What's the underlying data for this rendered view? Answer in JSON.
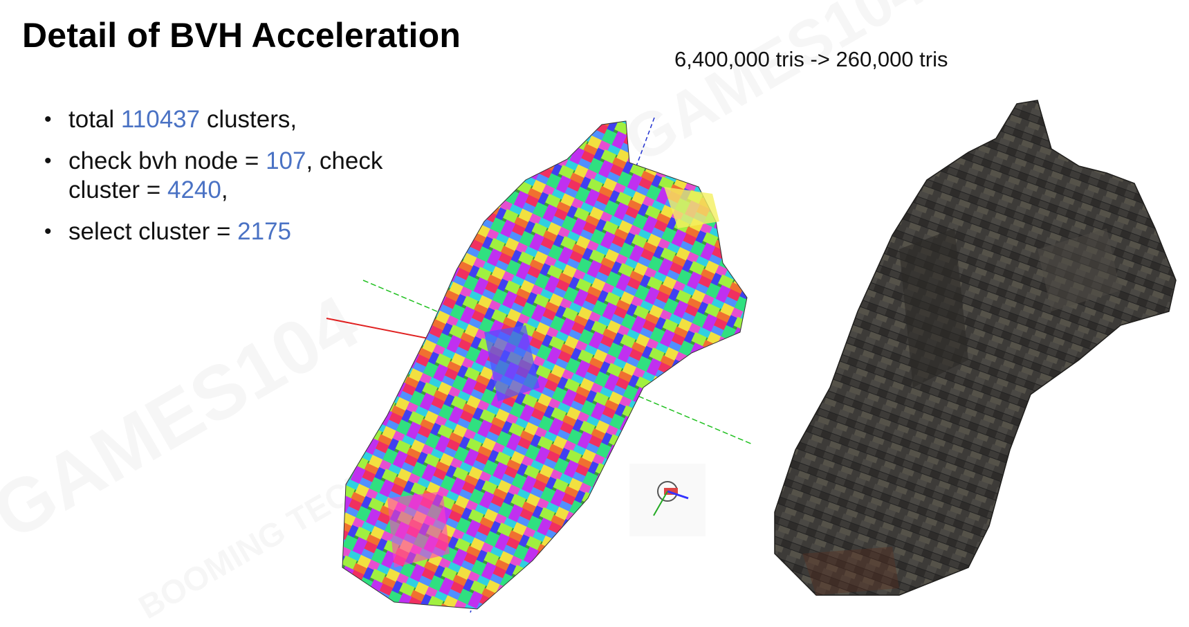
{
  "title": "Detail of BVH Acceleration",
  "subtitle": "6,400,000 tris -> 260,000 tris",
  "bullets": [
    {
      "pre": "total ",
      "num": "110437",
      "post": " clusters,"
    },
    {
      "pre": "check bvh node = ",
      "num": "107",
      "mid": ", check cluster = ",
      "num2": "4240",
      "post": ","
    },
    {
      "pre": "select cluster = ",
      "num": "2175",
      "post": ""
    }
  ],
  "watermarks": [
    "GAMES104",
    "BOOMING TECH"
  ],
  "colors": {
    "number": "#4a72c4",
    "axis_x": "#e02020",
    "axis_y": "#20c020",
    "axis_z": "#2030d0"
  },
  "images": {
    "left": "colored-cluster-visualization-of-temple-model",
    "right": "textured-stone-temple-model",
    "gizmo": "axis-gizmo-icon"
  }
}
